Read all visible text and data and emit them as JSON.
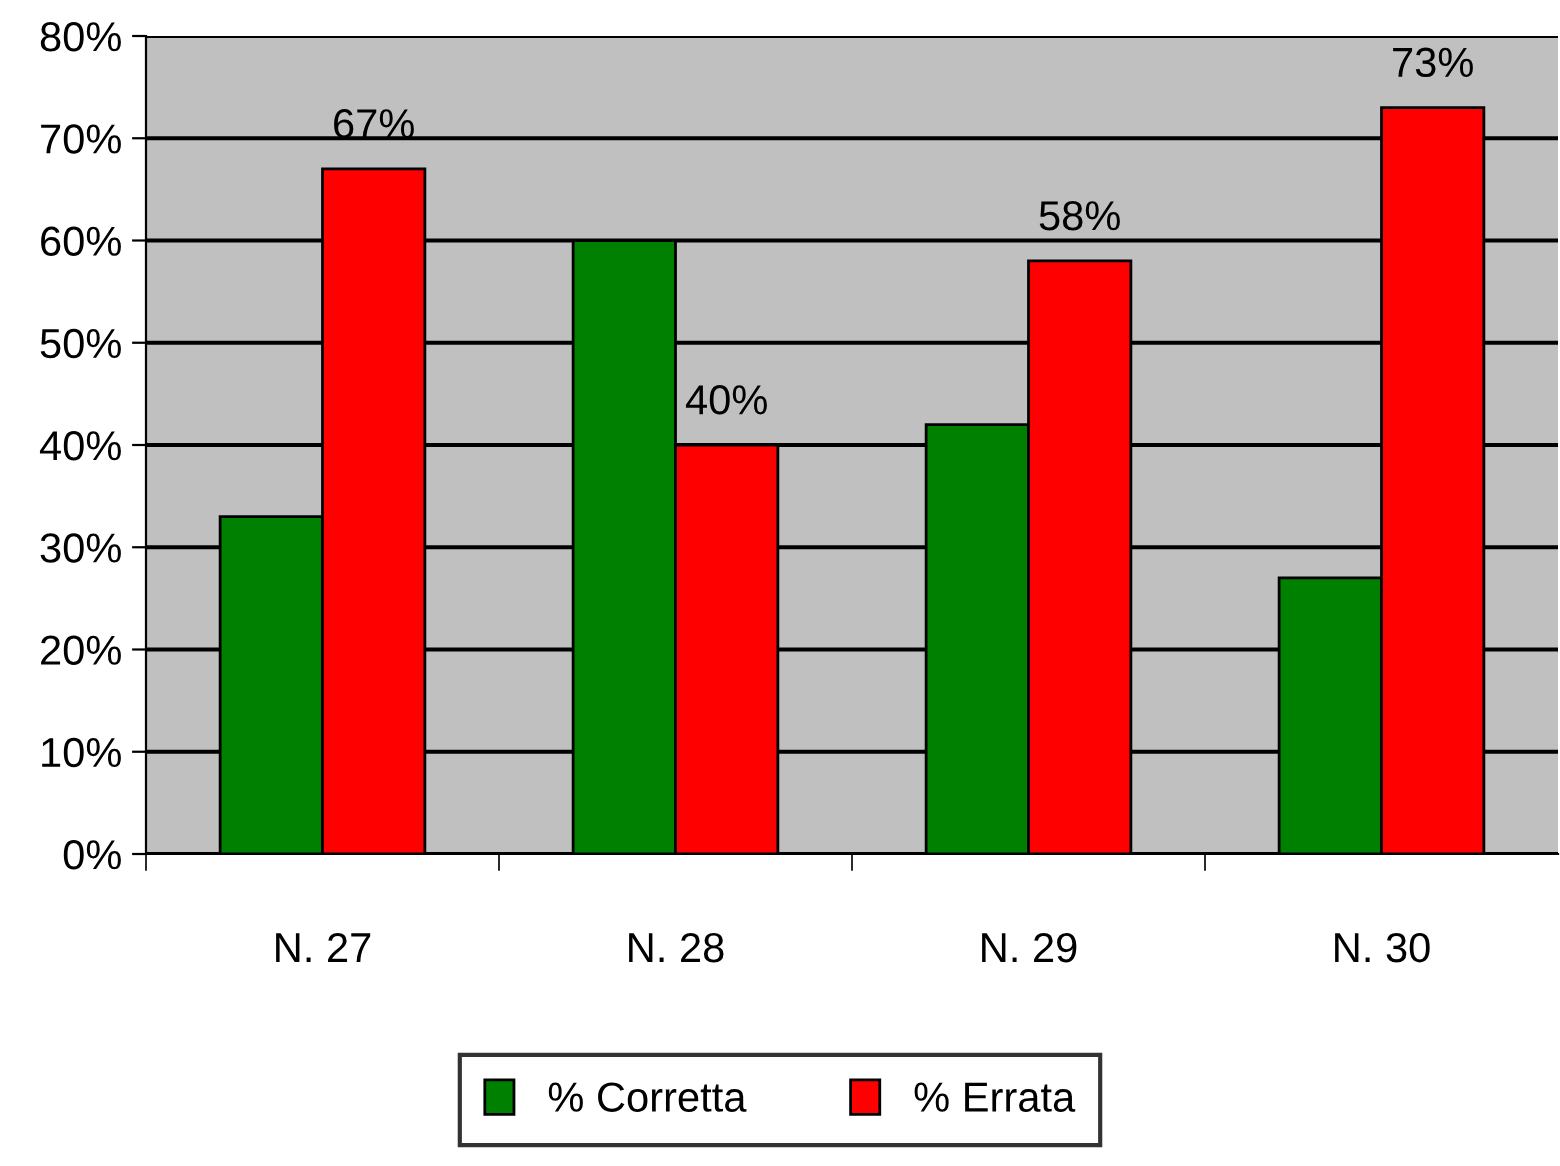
{
  "chart_data": {
    "type": "bar",
    "categories": [
      "N. 27",
      "N. 28",
      "N. 29",
      "N. 30"
    ],
    "series": [
      {
        "name": "% Corretta",
        "color": "#008000",
        "values": [
          33,
          60,
          42,
          27
        ]
      },
      {
        "name": "% Errata",
        "color": "#ff0000",
        "values": [
          67,
          40,
          58,
          73
        ],
        "value_labels": [
          "67%",
          "40%",
          "58%",
          "73%"
        ]
      }
    ],
    "ylim": [
      0,
      80
    ],
    "yticks": [
      {
        "value": 0,
        "label": "0%"
      },
      {
        "value": 10,
        "label": "10%"
      },
      {
        "value": 20,
        "label": "20%"
      },
      {
        "value": 30,
        "label": "30%"
      },
      {
        "value": 40,
        "label": "40%"
      },
      {
        "value": 50,
        "label": "50%"
      },
      {
        "value": 60,
        "label": "60%"
      },
      {
        "value": 70,
        "label": "70%"
      },
      {
        "value": 80,
        "label": "80%"
      }
    ],
    "grid": "y",
    "legend": "bottom"
  }
}
